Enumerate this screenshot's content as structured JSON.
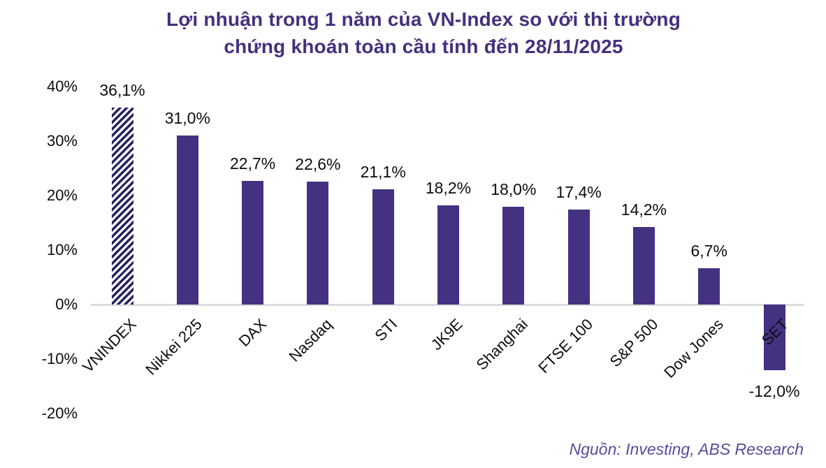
{
  "title": {
    "line1": "Lợi nhuận trong 1 năm của VN-Index so với thị trường",
    "line2": "chứng khoán toàn cầu tính đến 28/11/2025"
  },
  "source": "Nguồn: Investing, ABS Research",
  "colors": {
    "bar": "#453182",
    "hatch_stripe": "#272261",
    "title_text": "#44317F",
    "source_text": "#5A4B9C",
    "axis_line": "#DCDCDC",
    "label_text": "#0D0D0D"
  },
  "chart_data": {
    "type": "bar",
    "title": "Lợi nhuận trong 1 năm của VN-Index so với thị trường chứng khoán toàn cầu tính đến 28/11/2025",
    "categories": [
      "VNINDEX",
      "Nikkei 225",
      "DAX",
      "Nasdaq",
      "STI",
      "JK9E",
      "Shanghai",
      "FTSE 100",
      "S&P 500",
      "Dow Jones",
      "SET"
    ],
    "values": [
      36.1,
      31.0,
      22.7,
      22.6,
      21.1,
      18.2,
      18.0,
      17.4,
      14.2,
      6.7,
      -12.0
    ],
    "value_labels": [
      "36,1%",
      "31,0%",
      "22,7%",
      "22,6%",
      "21,1%",
      "18,2%",
      "18,0%",
      "17,4%",
      "14,2%",
      "6,7%",
      "-12,0%"
    ],
    "y_tick_labels": [
      "40%",
      "30%",
      "20%",
      "10%",
      "0%",
      "-10%",
      "-20%"
    ],
    "y_tick_values": [
      40,
      30,
      20,
      10,
      0,
      -10,
      -20
    ],
    "ylim": [
      -20,
      40
    ],
    "xlabel": "",
    "ylabel": "",
    "grid": false,
    "legend": false,
    "highlight_category": "VNINDEX",
    "highlight_style": "diagonal-hatch"
  }
}
